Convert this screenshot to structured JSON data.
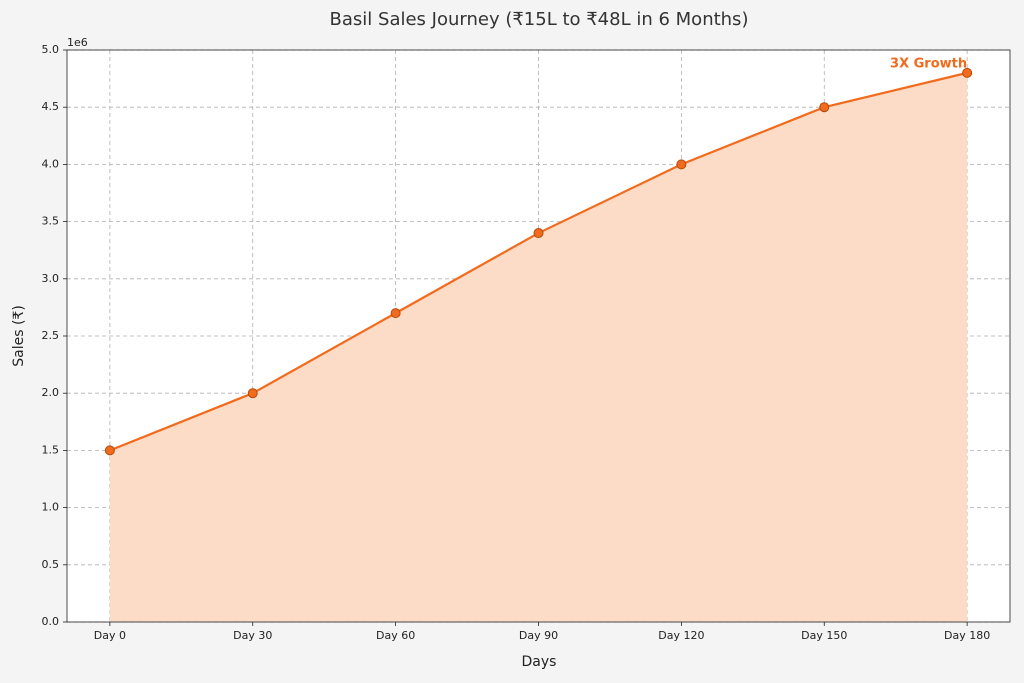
{
  "chart_data": {
    "type": "line",
    "title": "Basil Sales Journey (₹15L to ₹48L in 6 Months)",
    "x_label": "Days",
    "y_label": "Sales (₹)",
    "y_offset_label": "1e6",
    "annotation": "3X Growth",
    "categories": [
      "Day 0",
      "Day 30",
      "Day 60",
      "Day 90",
      "Day 120",
      "Day 150",
      "Day 180"
    ],
    "series": [
      {
        "name": "Sales",
        "color": "#f26a1b",
        "fill_color": "#fddcc7",
        "marker_edge_color": "#b04a10",
        "values": [
          1500000,
          2000000,
          2700000,
          3400000,
          4000000,
          4500000,
          4800000
        ]
      }
    ],
    "ylim": [
      0,
      5000000
    ],
    "yticks": [
      {
        "value": 0,
        "label": "0.0"
      },
      {
        "value": 500000,
        "label": "0.5"
      },
      {
        "value": 1000000,
        "label": "1.0"
      },
      {
        "value": 1500000,
        "label": "1.5"
      },
      {
        "value": 2000000,
        "label": "2.0"
      },
      {
        "value": 2500000,
        "label": "2.5"
      },
      {
        "value": 3000000,
        "label": "3.0"
      },
      {
        "value": 3500000,
        "label": "3.5"
      },
      {
        "value": 4000000,
        "label": "4.0"
      },
      {
        "value": 4500000,
        "label": "4.5"
      },
      {
        "value": 5000000,
        "label": "5.0"
      }
    ],
    "grid": true,
    "fill_area": true
  }
}
